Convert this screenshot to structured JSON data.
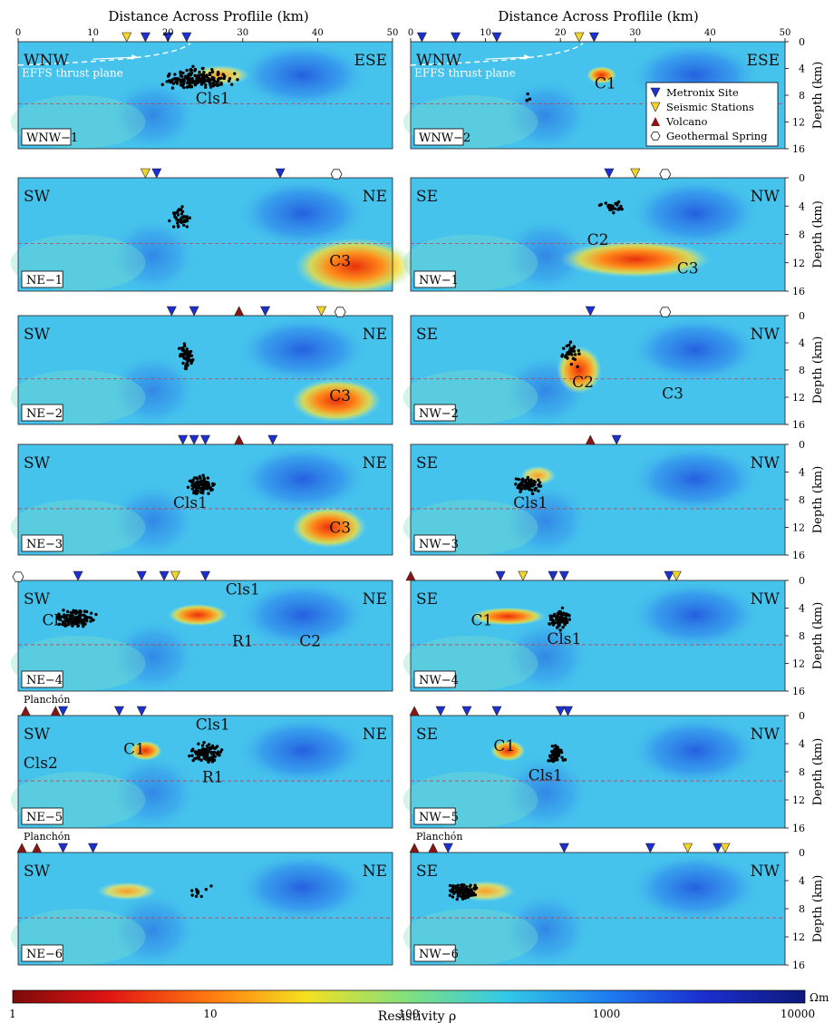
{
  "figure": {
    "top_axis_label": "Distance Across Proflile (km)",
    "x_ticks": [
      "0",
      "10",
      "20",
      "30",
      "40",
      "50"
    ],
    "depth_axis_label": "Depth (km)",
    "depth_ticks": [
      "0",
      "4",
      "8",
      "12",
      "16"
    ],
    "colorbar": {
      "label": "Resistivity ρ",
      "unit": "Ωm",
      "ticks": [
        "1",
        "10",
        "100",
        "1000",
        "10000"
      ],
      "scale": "log"
    },
    "legend": {
      "items": [
        {
          "label": "Metronix Site",
          "marker": "blue-down-triangle",
          "color": "#1c2fd0"
        },
        {
          "label": "Seismic Stations",
          "marker": "yellow-down-triangle",
          "color": "#f2d52a"
        },
        {
          "label": "Volcano",
          "marker": "red-up-triangle",
          "color": "#8b1414"
        },
        {
          "label": "Geothermal Spring",
          "marker": "white-hexagon",
          "color": "#ffffff"
        }
      ]
    },
    "thrust_label": "EFFS thrust plane",
    "panels": [
      {
        "id": "WNW-1",
        "label": "WNW−1",
        "dirL": "WNW",
        "dirR": "ESE",
        "features": [
          {
            "text": "Cls1",
            "x": 26,
            "d": 9.2
          }
        ],
        "blobs": [
          {
            "x": 27,
            "d": 5,
            "rx": 4,
            "rd": 1.5,
            "v": 0.55
          }
        ],
        "sites": [
          17,
          20,
          22.5
        ],
        "stations": [
          14.5
        ],
        "quakes": [
          {
            "x": 24,
            "d": 5.5,
            "sx": 3.6,
            "sd": 1.2,
            "n": 170
          }
        ]
      },
      {
        "id": "WNW-2",
        "label": "WNW−2",
        "dirL": "WNW",
        "dirR": "ESE",
        "features": [
          {
            "text": "C1",
            "x": 26,
            "d": 7
          }
        ],
        "blobs": [
          {
            "x": 25.5,
            "d": 5,
            "rx": 2,
            "rd": 1.3,
            "v": 0.92
          }
        ],
        "sites": [
          1.5,
          6,
          11.5,
          24.5
        ],
        "stations": [
          22.5
        ],
        "quakes": [
          {
            "x": 15.5,
            "d": 8.4,
            "sx": 0.3,
            "sd": 0.5,
            "n": 4
          }
        ]
      },
      {
        "id": "NE-1",
        "label": "NE−1",
        "dirL": "SW",
        "dirR": "NE",
        "features": [
          {
            "text": "C3",
            "x": 43,
            "d": 12.5
          }
        ],
        "blobs": [
          {
            "x": 45,
            "d": 12.5,
            "rx": 8,
            "rd": 4,
            "v": 0.9
          }
        ],
        "sites": [
          18.5,
          35
        ],
        "stations": [
          17
        ],
        "springs": [
          42.5
        ],
        "quakes": [
          {
            "x": 21.5,
            "d": 5.8,
            "sx": 1.3,
            "sd": 1.5,
            "n": 40
          }
        ]
      },
      {
        "id": "NW-1",
        "label": "NW−1",
        "dirL": "SE",
        "dirR": "NW",
        "features": [
          {
            "text": "C2",
            "x": 25,
            "d": 9.5
          },
          {
            "text": "C3",
            "x": 37,
            "d": 13.5
          }
        ],
        "blobs": [
          {
            "x": 30,
            "d": 11.5,
            "rx": 10,
            "rd": 2.6,
            "v": 0.88
          }
        ],
        "sites": [
          26.5
        ],
        "stations": [
          30
        ],
        "springs": [
          34
        ],
        "quakes": [
          {
            "x": 27,
            "d": 4,
            "sx": 1.4,
            "sd": 0.8,
            "n": 28
          }
        ]
      },
      {
        "id": "NE-2",
        "label": "NE−2",
        "dirL": "SW",
        "dirR": "NE",
        "features": [
          {
            "text": "C3",
            "x": 43,
            "d": 12.5
          }
        ],
        "blobs": [
          {
            "x": 42.5,
            "d": 12.5,
            "rx": 6,
            "rd": 3.2,
            "v": 0.9
          }
        ],
        "sites": [
          20.5,
          23.5,
          33
        ],
        "stations": [
          40.5
        ],
        "volcanoes": [
          29.5
        ],
        "springs": [
          43
        ],
        "quakes": [
          {
            "x": 22.5,
            "d": 6,
            "sx": 0.8,
            "sd": 1.6,
            "n": 60
          }
        ]
      },
      {
        "id": "NW-2",
        "label": "NW−2",
        "dirL": "SE",
        "dirR": "NW",
        "features": [
          {
            "text": "C2",
            "x": 23,
            "d": 10.5
          },
          {
            "text": "C3",
            "x": 35,
            "d": 12.2
          }
        ],
        "blobs": [
          {
            "x": 22.5,
            "d": 8,
            "rx": 3,
            "rd": 3.5,
            "v": 0.9
          }
        ],
        "sites": [
          24
        ],
        "springs": [
          34
        ],
        "quakes": [
          {
            "x": 21.5,
            "d": 5.5,
            "sx": 1.4,
            "sd": 1.4,
            "n": 30
          }
        ]
      },
      {
        "id": "NE-3",
        "label": "NE−3",
        "dirL": "SW",
        "dirR": "NE",
        "features": [
          {
            "text": "Cls1",
            "x": 23,
            "d": 9.2
          },
          {
            "text": "C3",
            "x": 43,
            "d": 12.8
          }
        ],
        "blobs": [
          {
            "x": 41.5,
            "d": 12,
            "rx": 5,
            "rd": 3,
            "v": 0.88
          }
        ],
        "sites": [
          22,
          23.5,
          25,
          34
        ],
        "stations": [],
        "volcanoes": [
          29.5
        ],
        "quakes": [
          {
            "x": 24.5,
            "d": 6,
            "sx": 1.3,
            "sd": 1.3,
            "n": 110
          }
        ]
      },
      {
        "id": "NW-3",
        "label": "NW−3",
        "dirL": "SE",
        "dirR": "NW",
        "features": [
          {
            "text": "Cls1",
            "x": 16,
            "d": 9.2
          }
        ],
        "blobs": [
          {
            "x": 17,
            "d": 4.5,
            "rx": 2.4,
            "rd": 1.4,
            "v": 0.65
          }
        ],
        "sites": [
          27.5
        ],
        "volcanoes": [
          24
        ],
        "quakes": [
          {
            "x": 15.5,
            "d": 6,
            "sx": 1.7,
            "sd": 1.1,
            "n": 70
          }
        ]
      },
      {
        "id": "NE-4",
        "label": "NE−4",
        "dirL": "SW",
        "dirR": "NE",
        "features": [
          {
            "text": "Cls2",
            "x": 5.5,
            "d": 6.5
          },
          {
            "text": "Cls1",
            "x": 30,
            "d": 2
          },
          {
            "text": "R1",
            "x": 30,
            "d": 9.5
          },
          {
            "text": "C2",
            "x": 39,
            "d": 9.5
          }
        ],
        "blobs": [
          {
            "x": 24,
            "d": 5,
            "rx": 4,
            "rd": 1.6,
            "v": 0.9
          }
        ],
        "sites": [
          8,
          16.5,
          19.5,
          25
        ],
        "stations": [
          21
        ],
        "springs": [
          0
        ],
        "quakes": [
          {
            "x": 7.5,
            "d": 5.5,
            "sx": 2.2,
            "sd": 1.2,
            "n": 120
          }
        ]
      },
      {
        "id": "NW-4",
        "label": "NW−4",
        "dirL": "SE",
        "dirR": "NW",
        "features": [
          {
            "text": "C1",
            "x": 9.5,
            "d": 6.5
          },
          {
            "text": "Cls1",
            "x": 20.5,
            "d": 9.2
          }
        ],
        "blobs": [
          {
            "x": 13,
            "d": 5.2,
            "rx": 5,
            "rd": 1.3,
            "v": 0.85
          }
        ],
        "sites": [
          12,
          19,
          20.5,
          34.5
        ],
        "stations": [
          15,
          35.5
        ],
        "volcanoes": [
          0
        ],
        "quakes": [
          {
            "x": 20,
            "d": 5.5,
            "sx": 1.2,
            "sd": 1.3,
            "n": 90
          }
        ]
      },
      {
        "id": "NE-5",
        "label": "NE−5",
        "dirL": "SW",
        "dirR": "NE",
        "features": [
          {
            "text": "C1",
            "x": 15.5,
            "d": 5.5
          },
          {
            "text": "Cls1",
            "x": 26,
            "d": 2
          },
          {
            "text": "R1",
            "x": 26,
            "d": 9.5
          },
          {
            "text": "Cls2",
            "x": 3,
            "d": 7.5
          }
        ],
        "blobs": [
          {
            "x": 17,
            "d": 5,
            "rx": 2.2,
            "rd": 1.4,
            "v": 0.93
          }
        ],
        "sites": [
          6,
          13.5,
          16.5
        ],
        "volcanoes": [
          1,
          5
        ],
        "quakes": [
          {
            "x": 25,
            "d": 5.5,
            "sx": 2,
            "sd": 1.2,
            "n": 110
          }
        ]
      },
      {
        "id": "NW-5",
        "label": "NW−5",
        "dirL": "SE",
        "dirR": "NW",
        "features": [
          {
            "text": "C1",
            "x": 12.5,
            "d": 5
          },
          {
            "text": "Cls1",
            "x": 18,
            "d": 9.2
          }
        ],
        "blobs": [
          {
            "x": 13,
            "d": 5,
            "rx": 2.3,
            "rd": 1.5,
            "v": 0.9
          }
        ],
        "sites": [
          4,
          7.5,
          11.5,
          20,
          21
        ],
        "volcanoes": [
          0.5
        ],
        "quakes": [
          {
            "x": 19.5,
            "d": 5.5,
            "sx": 1,
            "sd": 1.3,
            "n": 50
          }
        ]
      },
      {
        "id": "NE-6",
        "label": "NE−6",
        "dirL": "SW",
        "dirR": "NE",
        "features": [],
        "blobs": [
          {
            "x": 14.5,
            "d": 5.5,
            "rx": 4,
            "rd": 1.3,
            "v": 0.75
          }
        ],
        "sites": [
          6,
          10
        ],
        "volcanoes": [
          0.5,
          2.5
        ],
        "quakes": [
          {
            "x": 25,
            "d": 5.5,
            "sx": 2.5,
            "sd": 1.2,
            "n": 10
          }
        ]
      },
      {
        "id": "NW-6",
        "label": "NW−6",
        "dirL": "SE",
        "dirR": "NW",
        "features": [],
        "blobs": [
          {
            "x": 10,
            "d": 5.5,
            "rx": 4,
            "rd": 1.5,
            "v": 0.55
          }
        ],
        "sites": [
          5,
          20.5,
          32,
          41
        ],
        "stations": [
          37,
          42
        ],
        "volcanoes": [
          0.5,
          3
        ],
        "quakes": [
          {
            "x": 7,
            "d": 5.5,
            "sx": 1.5,
            "sd": 1,
            "n": 120
          }
        ]
      }
    ],
    "volcano_name": "Planchón"
  }
}
